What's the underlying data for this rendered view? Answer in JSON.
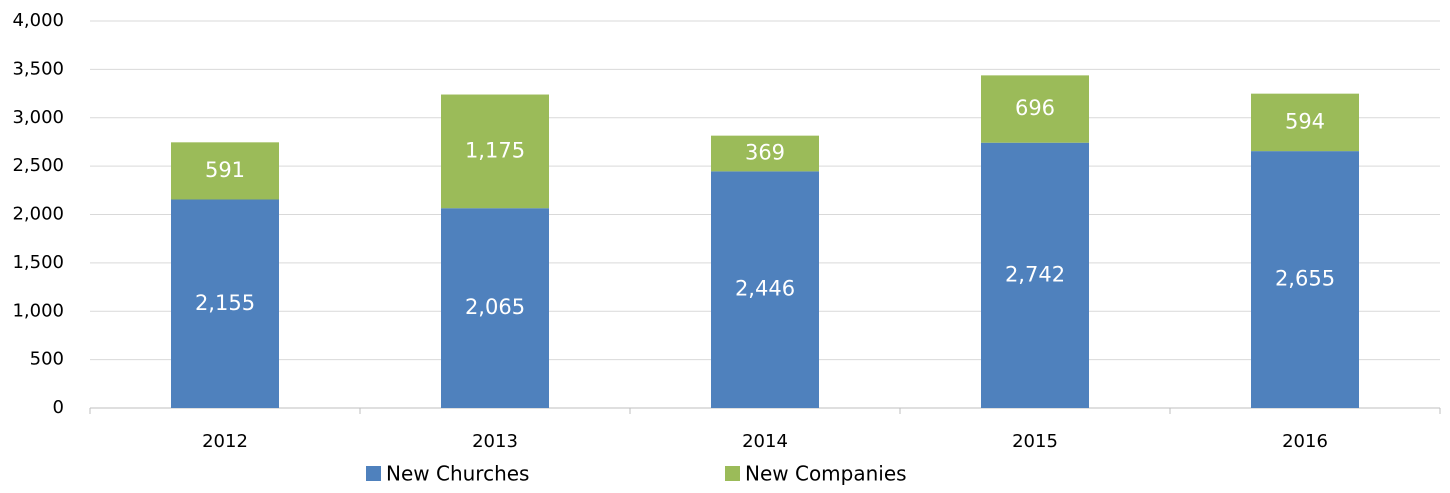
{
  "chart_data": {
    "type": "stacked_bar",
    "categories": [
      "2012",
      "2013",
      "2014",
      "2015",
      "2016"
    ],
    "series": [
      {
        "name": "New Churches",
        "color": "#4f81bd",
        "values": [
          2155,
          2065,
          2446,
          2742,
          2655
        ],
        "value_labels": [
          "2,155",
          "2,065",
          "2,446",
          "2,742",
          "2,655"
        ]
      },
      {
        "name": "New Companies",
        "color": "#9bbb59",
        "values": [
          591,
          1175,
          369,
          696,
          594
        ],
        "value_labels": [
          "591",
          "1,175",
          "369",
          "696",
          "594"
        ]
      }
    ],
    "ylim": [
      0,
      4000
    ],
    "yticks": [
      0,
      500,
      {
        "value": 1000,
        "label": "1,000"
      },
      {
        "value": 1500,
        "label": "1,500"
      },
      {
        "value": 2000,
        "label": "2,000"
      },
      {
        "value": 2500,
        "label": "2,500"
      },
      {
        "value": 3000,
        "label": "3,000"
      },
      {
        "value": 3500,
        "label": "3,500"
      },
      {
        "value": 4000,
        "label": "4,000"
      }
    ],
    "grid": true,
    "legend": "bottom"
  }
}
